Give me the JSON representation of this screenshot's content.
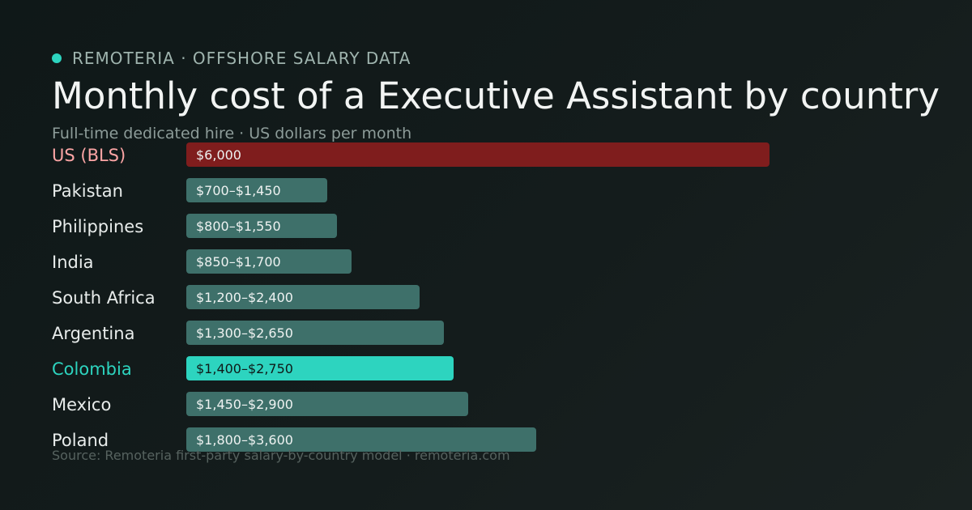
{
  "header": {
    "brand": "REMOTERIA · OFFSHORE SALARY DATA",
    "title": "Monthly cost of a Executive Assistant by country",
    "subtitle": "Full-time dedicated hire · US dollars per month"
  },
  "footer": {
    "source": "Source: Remoteria first-party salary-by-country model · remoteria.com"
  },
  "colors": {
    "accent": "#2dd4bf",
    "bar_default": "#3e706a",
    "bar_benchmark": "#7f1d1d",
    "label_default": "#e8eceb",
    "label_benchmark": "#fca5a5",
    "label_highlight": "#2dd4bf"
  },
  "chart_data": {
    "type": "bar",
    "orientation": "horizontal",
    "title": "Monthly cost of a Executive Assistant by country",
    "subtitle": "Full-time dedicated hire · US dollars per month",
    "xlim": [
      0,
      6000
    ],
    "grid": false,
    "categories": [
      "US (BLS)",
      "Pakistan",
      "Philippines",
      "India",
      "South Africa",
      "Argentina",
      "Colombia",
      "Mexico",
      "Poland"
    ],
    "values": [
      6000,
      1450,
      1550,
      1700,
      2400,
      2650,
      2750,
      2900,
      3600
    ],
    "ranges": [
      [
        6000,
        6000
      ],
      [
        700,
        1450
      ],
      [
        800,
        1550
      ],
      [
        850,
        1700
      ],
      [
        1200,
        2400
      ],
      [
        1300,
        2650
      ],
      [
        1400,
        2750
      ],
      [
        1450,
        2900
      ],
      [
        1800,
        3600
      ]
    ],
    "value_labels": [
      "$6,000",
      "$700–$1,450",
      "$800–$1,550",
      "$850–$1,700",
      "$1,200–$2,400",
      "$1,300–$2,650",
      "$1,400–$2,750",
      "$1,450–$2,900",
      "$1,800–$3,600"
    ],
    "roles": [
      "benchmark",
      "default",
      "default",
      "default",
      "default",
      "default",
      "highlight",
      "default",
      "default"
    ]
  }
}
